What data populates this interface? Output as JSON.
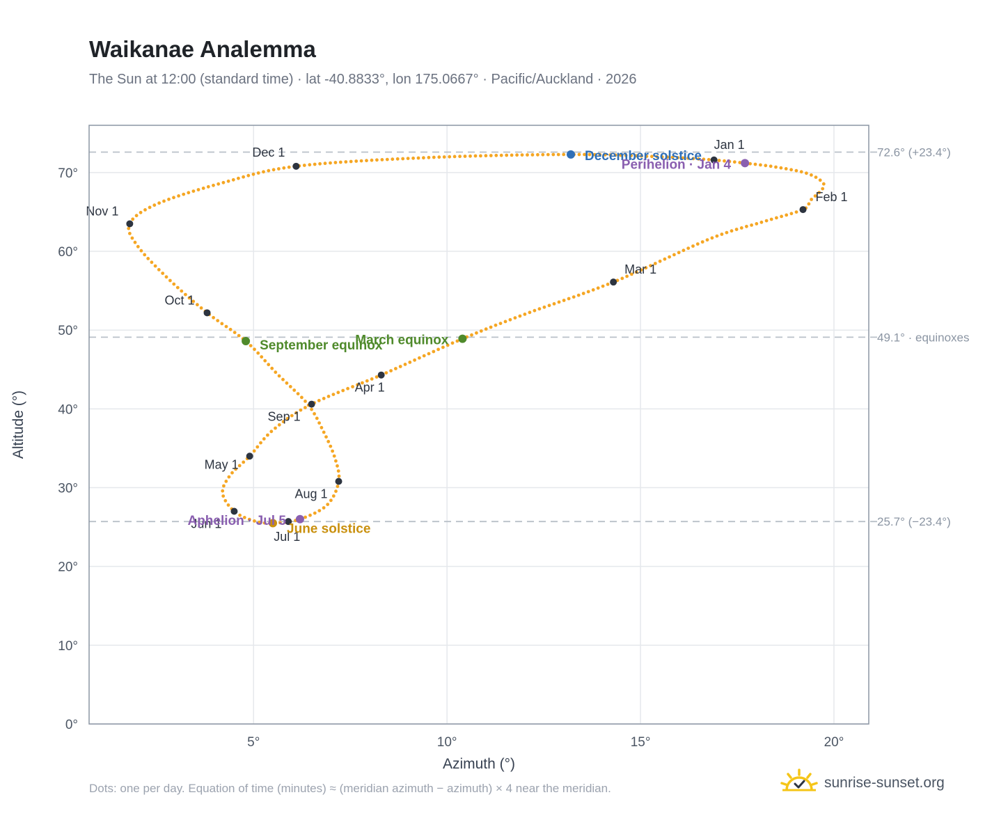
{
  "title": "Waikanae Analemma",
  "subtitle": "The Sun at 12:00 (standard time) · lat -40.8833°, lon 175.0667° · Pacific/Auckland · 2026",
  "footnote": "Dots: one per day. Equation of time (minutes) ≈ (meridian azimuth − azimuth) × 4 near the meridian.",
  "brand": {
    "name": "sunrise-sunset.org",
    "icon": "sun-check-icon"
  },
  "colors": {
    "path": "#f5a623",
    "month_marker": "#2d3440",
    "december_solstice": "#2f6fb7",
    "june_solstice": "#c9900e",
    "equinox": "#4f8a2b",
    "apsis": "#8a5fb0",
    "reference_line": "#b9c0c8",
    "axis": "#8b95a3"
  },
  "chart_data": {
    "type": "scatter",
    "title": "Waikanae Analemma",
    "xlabel": "Azimuth (°)",
    "ylabel": "Altitude (°)",
    "xlim": [
      0.75,
      20.9
    ],
    "ylim": [
      0,
      76
    ],
    "x_ticks": [
      5,
      10,
      15,
      20
    ],
    "x_tick_labels": [
      "5°",
      "10°",
      "15°",
      "20°"
    ],
    "y_ticks": [
      0,
      10,
      20,
      30,
      40,
      50,
      60,
      70
    ],
    "y_tick_labels": [
      "0°",
      "10°",
      "20°",
      "30°",
      "40°",
      "50°",
      "60°",
      "70°"
    ],
    "grid": true,
    "path_keypoints": [
      {
        "x": 16.9,
        "y": 71.6
      },
      {
        "x": 17.7,
        "y": 71.2
      },
      {
        "x": 18.5,
        "y": 70.7
      },
      {
        "x": 19.3,
        "y": 69.9
      },
      {
        "x": 19.7,
        "y": 68.8
      },
      {
        "x": 19.7,
        "y": 67.9
      },
      {
        "x": 19.4,
        "y": 66.5
      },
      {
        "x": 19.2,
        "y": 65.3
      },
      {
        "x": 18.2,
        "y": 63.8
      },
      {
        "x": 16.8,
        "y": 61.6
      },
      {
        "x": 14.3,
        "y": 56.1
      },
      {
        "x": 12.0,
        "y": 52.0
      },
      {
        "x": 10.4,
        "y": 48.9
      },
      {
        "x": 8.3,
        "y": 44.3
      },
      {
        "x": 6.5,
        "y": 40.6
      },
      {
        "x": 5.5,
        "y": 37.3
      },
      {
        "x": 4.9,
        "y": 34.0
      },
      {
        "x": 4.4,
        "y": 31.6
      },
      {
        "x": 4.2,
        "y": 29.3
      },
      {
        "x": 4.5,
        "y": 27.0
      },
      {
        "x": 5.0,
        "y": 25.8
      },
      {
        "x": 5.5,
        "y": 25.5
      },
      {
        "x": 6.2,
        "y": 26.0
      },
      {
        "x": 6.9,
        "y": 27.8
      },
      {
        "x": 7.2,
        "y": 30.8
      },
      {
        "x": 7.1,
        "y": 33.8
      },
      {
        "x": 6.8,
        "y": 37.2
      },
      {
        "x": 6.4,
        "y": 40.6
      },
      {
        "x": 5.6,
        "y": 44.5
      },
      {
        "x": 4.8,
        "y": 48.6
      },
      {
        "x": 3.8,
        "y": 52.2
      },
      {
        "x": 2.8,
        "y": 56.5
      },
      {
        "x": 2.0,
        "y": 60.7
      },
      {
        "x": 1.8,
        "y": 63.5
      },
      {
        "x": 2.5,
        "y": 66.0
      },
      {
        "x": 4.2,
        "y": 68.7
      },
      {
        "x": 6.1,
        "y": 70.8
      },
      {
        "x": 9.5,
        "y": 71.9
      },
      {
        "x": 13.2,
        "y": 72.3
      },
      {
        "x": 15.5,
        "y": 72.0
      },
      {
        "x": 16.9,
        "y": 71.6
      }
    ],
    "month_markers": [
      {
        "label": "Jan 1",
        "x": 16.9,
        "y": 71.6
      },
      {
        "label": "Feb 1",
        "x": 19.2,
        "y": 65.3
      },
      {
        "label": "Mar 1",
        "x": 14.3,
        "y": 56.1
      },
      {
        "label": "Apr 1",
        "x": 8.3,
        "y": 44.3
      },
      {
        "label": "May 1",
        "x": 4.9,
        "y": 34.0
      },
      {
        "label": "Jun 1",
        "x": 4.5,
        "y": 27.0
      },
      {
        "label": "Jul 1",
        "x": 5.9,
        "y": 25.7
      },
      {
        "label": "Aug 1",
        "x": 7.2,
        "y": 30.8
      },
      {
        "label": "Sep 1",
        "x": 6.5,
        "y": 40.6
      },
      {
        "label": "Oct 1",
        "x": 3.8,
        "y": 52.2
      },
      {
        "label": "Nov 1",
        "x": 1.8,
        "y": 63.5
      },
      {
        "label": "Dec 1",
        "x": 6.1,
        "y": 70.8
      }
    ],
    "events": [
      {
        "label": "December solstice",
        "kind": "december_solstice",
        "x": 13.2,
        "y": 72.3
      },
      {
        "label": "June solstice",
        "kind": "june_solstice",
        "x": 5.5,
        "y": 25.5
      },
      {
        "label": "March equinox",
        "kind": "equinox",
        "x": 10.4,
        "y": 48.9
      },
      {
        "label": "September equinox",
        "kind": "equinox",
        "x": 4.8,
        "y": 48.6
      },
      {
        "label": "Perihelion · Jan 4",
        "kind": "apsis",
        "x": 17.7,
        "y": 71.2
      },
      {
        "label": "Aphelion · Jul 5",
        "kind": "apsis",
        "x": 6.2,
        "y": 26.0
      }
    ],
    "reference_lines": [
      {
        "label": "72.6° (+23.4°)",
        "y": 72.6
      },
      {
        "label": "49.1° · equinoxes",
        "y": 49.1
      },
      {
        "label": "25.7° (−23.4°)",
        "y": 25.7
      }
    ]
  }
}
